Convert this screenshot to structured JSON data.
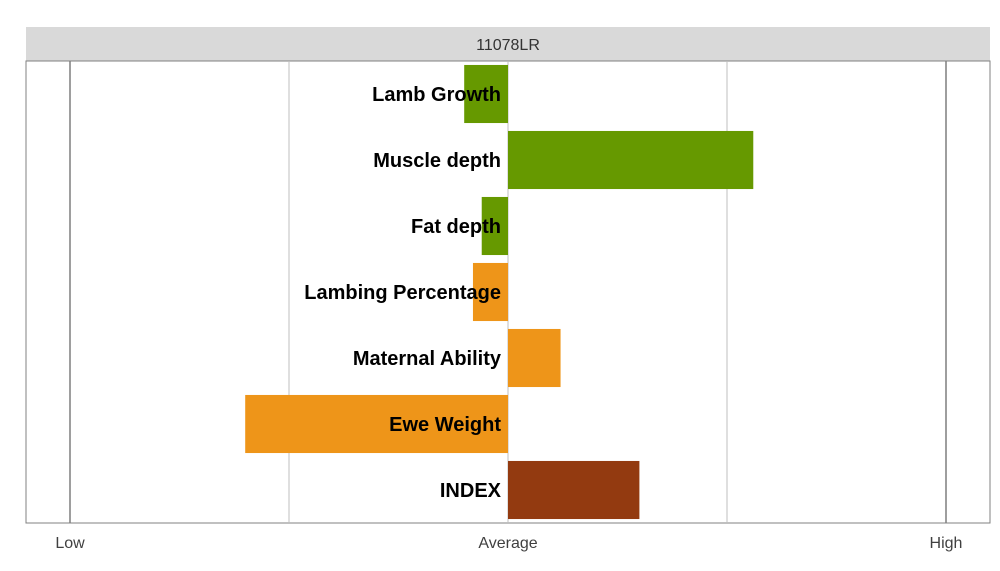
{
  "chart_data": {
    "type": "bar",
    "orientation": "horizontal",
    "title": "11078LR",
    "categories": [
      "Lamb Growth",
      "Muscle depth",
      "Fat depth",
      "Lambing Percentage",
      "Maternal Ability",
      "Ewe Weight",
      "INDEX"
    ],
    "values": [
      -0.1,
      0.56,
      -0.06,
      -0.08,
      0.12,
      -0.6,
      0.3
    ],
    "colors": [
      "#669900",
      "#669900",
      "#669900",
      "#EE9519",
      "#EE9519",
      "#EE9519",
      "#933A10"
    ],
    "xlim": [
      -1,
      1
    ],
    "x_tick_values": [
      -1,
      0,
      1
    ],
    "x_tick_labels": [
      "Low",
      "Average",
      "High"
    ],
    "grid_values": [
      -1,
      -0.5,
      0,
      0.5,
      1
    ],
    "xlabel": "",
    "ylabel": ""
  }
}
